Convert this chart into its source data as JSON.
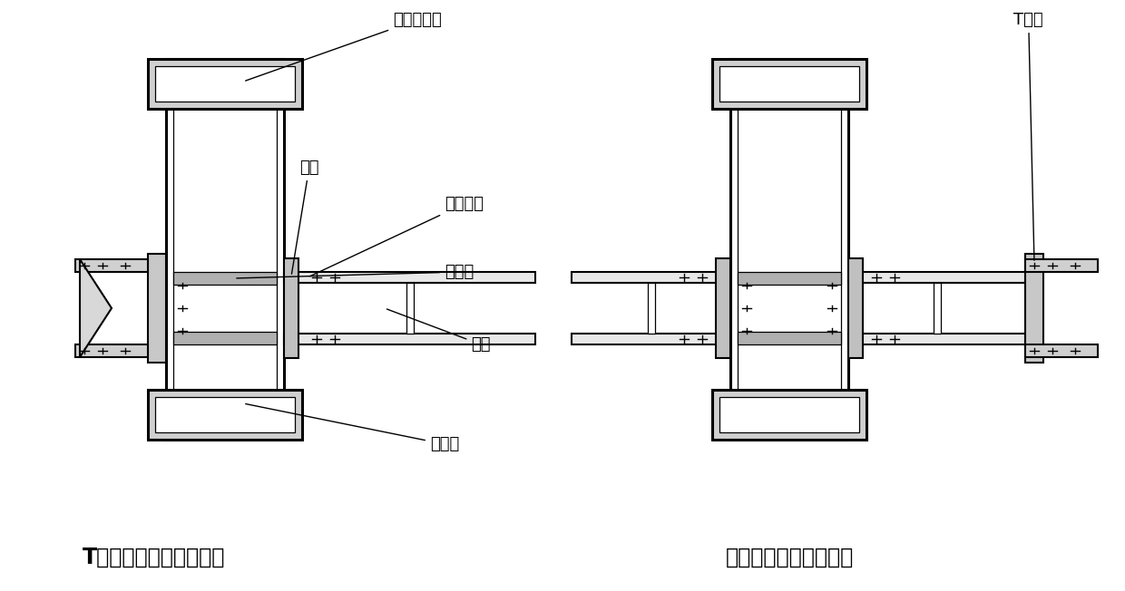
{
  "bg_color": "#ffffff",
  "line_color": "#000000",
  "title_left": "T形件穿心螺栓连接节点",
  "title_right": "端板穿心螺栓连接节点",
  "labels": {
    "core_concrete": "核心混凝土",
    "end_plate": "端板",
    "through_bolt": "穿心螺栓",
    "stiffener": "加劲肋",
    "steel_beam": "钢梁",
    "steel_tube": "钢管柱",
    "T_piece": "T形件"
  },
  "font_size_label": 13,
  "font_size_title": 15
}
